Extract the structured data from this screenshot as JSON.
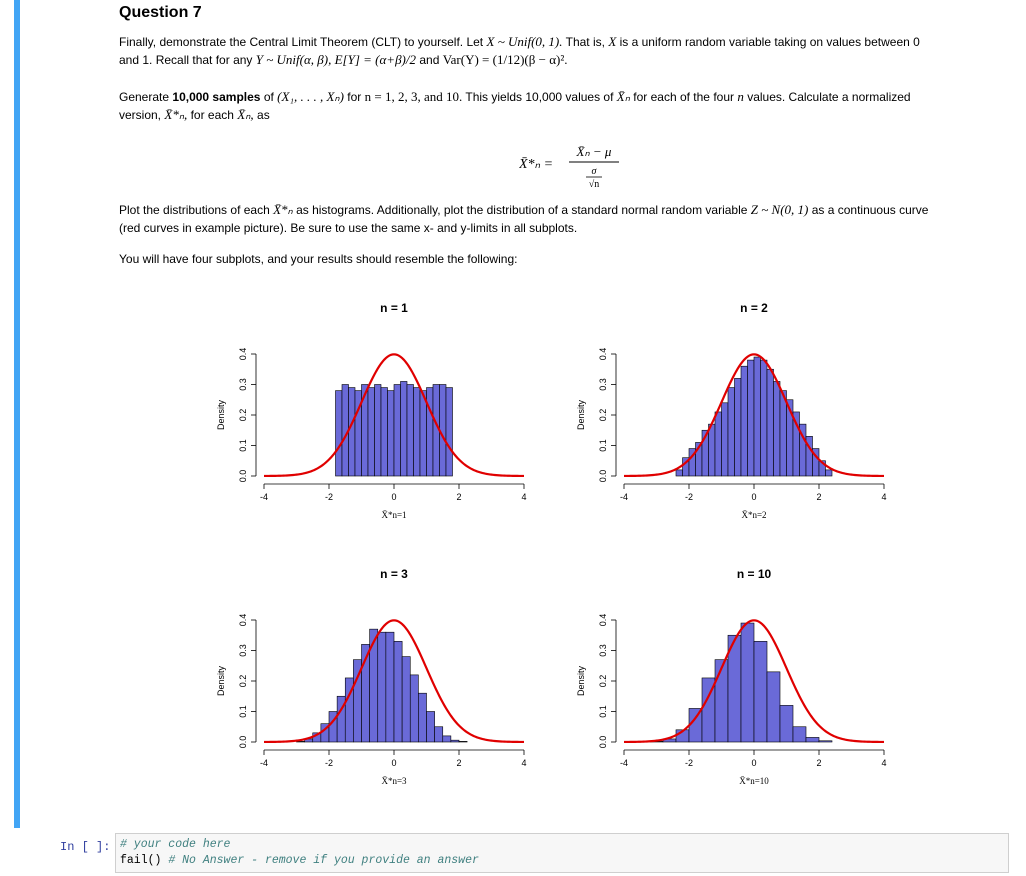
{
  "question": {
    "title": "Question 7",
    "p1_a": "Finally, demonstrate the Central Limit Theorem (CLT) to yourself. Let",
    "p1_math1": "X ~ Unif(0, 1).",
    "p1_b": "That is,",
    "p1_math2": "X",
    "p1_c": "is a uniform random variable taking on values between 0",
    "p1_d": "and 1. Recall that for any",
    "p1_math3": "Y ~ Unif(α, β), E[Y] = (α+β)/2",
    "p1_e": "and",
    "p1_math4": "Var(Y) = (1/12)(β − α)².",
    "p2_a": "Generate",
    "p2_bold": "10,000 samples",
    "p2_b": "of",
    "p2_math1": "(X₁, . . . , Xₙ)",
    "p2_c": "for",
    "p2_math2": "n = 1, 2, 3, and 10.",
    "p2_d": "This yields 10,000 values of",
    "p2_math3": "X̄ₙ",
    "p2_e": "for each of the four",
    "p2_math4": "n",
    "p2_f": "values. Calculate a normalized",
    "p2_g": "version,",
    "p2_math5": "X̄*ₙ,",
    "p2_h": "for each",
    "p2_math6": "X̄ₙ,",
    "p2_i": "as",
    "formula_lhs": "X̄*ₙ =",
    "formula_num": "X̄ₙ − μ",
    "formula_den_top": "σ",
    "formula_den_bot": "√n",
    "p3_a": "Plot the distributions of each",
    "p3_math1": "X̄*ₙ",
    "p3_b": "as histograms. Additionally, plot the distribution of a standard normal random variable",
    "p3_math2": "Z ~ N(0, 1)",
    "p3_c": "as a continuous curve",
    "p3_d": "(red curves in example picture). Be sure to use the same x- and y-limits in all subplots.",
    "p4": "You will have four subplots, and your results should resemble the following:"
  },
  "colors": {
    "bar_fill": "#6a6ad8",
    "bar_stroke": "#000000",
    "curve": "#e00000",
    "cell_bar": "#42a5f5",
    "prompt": "#303f9f",
    "comment": "#408080"
  },
  "chart_data": [
    {
      "type": "bar",
      "title": "n = 1",
      "ylabel": "Density",
      "xlabel": "X̄*n=1",
      "xlim": [
        -4,
        4
      ],
      "ylim": [
        0,
        0.4
      ],
      "x_ticks": [
        "-4",
        "-2",
        "0",
        "2",
        "4"
      ],
      "y_ticks": [
        "0.0",
        "0.1",
        "0.2",
        "0.3",
        "0.4"
      ],
      "bin_width": 0.2,
      "bin_start": -1.8,
      "values": [
        0.28,
        0.3,
        0.29,
        0.28,
        0.3,
        0.29,
        0.3,
        0.29,
        0.28,
        0.3,
        0.31,
        0.3,
        0.29,
        0.28,
        0.29,
        0.3,
        0.3,
        0.29
      ],
      "curve": "standard normal density"
    },
    {
      "type": "bar",
      "title": "n = 2",
      "ylabel": "Density",
      "xlabel": "X̄*n=2",
      "xlim": [
        -4,
        4
      ],
      "ylim": [
        0,
        0.4
      ],
      "x_ticks": [
        "-4",
        "-2",
        "0",
        "2",
        "4"
      ],
      "y_ticks": [
        "0.0",
        "0.1",
        "0.2",
        "0.3",
        "0.4"
      ],
      "bin_width": 0.2,
      "bin_start": -2.4,
      "values": [
        0.02,
        0.06,
        0.09,
        0.11,
        0.15,
        0.17,
        0.21,
        0.24,
        0.29,
        0.32,
        0.36,
        0.38,
        0.39,
        0.38,
        0.35,
        0.31,
        0.28,
        0.25,
        0.21,
        0.17,
        0.13,
        0.09,
        0.05,
        0.02
      ],
      "curve": "standard normal density"
    },
    {
      "type": "bar",
      "title": "n = 3",
      "ylabel": "Density",
      "xlabel": "X̄*n=3",
      "xlim": [
        -4,
        4
      ],
      "ylim": [
        0,
        0.4
      ],
      "x_ticks": [
        "-4",
        "-2",
        "0",
        "2",
        "4"
      ],
      "y_ticks": [
        "0.0",
        "0.1",
        "0.2",
        "0.3",
        "0.4"
      ],
      "bin_width": 0.25,
      "bin_start": -3.0,
      "values": [
        0.002,
        0.01,
        0.03,
        0.06,
        0.1,
        0.15,
        0.21,
        0.27,
        0.32,
        0.37,
        0.36,
        0.36,
        0.33,
        0.28,
        0.22,
        0.16,
        0.1,
        0.05,
        0.02,
        0.006,
        0.002
      ],
      "curve": "standard normal density"
    },
    {
      "type": "bar",
      "title": "n = 10",
      "ylabel": "Density",
      "xlabel": "X̄*n=10",
      "xlim": [
        -4,
        4
      ],
      "ylim": [
        0,
        0.4
      ],
      "x_ticks": [
        "-4",
        "-2",
        "0",
        "2",
        "4"
      ],
      "y_ticks": [
        "0.0",
        "0.1",
        "0.2",
        "0.3",
        "0.4"
      ],
      "bin_width": 0.4,
      "bin_start": -3.2,
      "values": [
        0.002,
        0.01,
        0.04,
        0.11,
        0.21,
        0.27,
        0.35,
        0.39,
        0.33,
        0.23,
        0.12,
        0.05,
        0.015,
        0.004
      ],
      "curve": "standard normal density"
    }
  ],
  "code_cell": {
    "prompt": "In [ ]:",
    "line1": "# your code here",
    "line2_fn": "fail()",
    "line2_comment": "# No Answer - remove if you provide an answer"
  }
}
